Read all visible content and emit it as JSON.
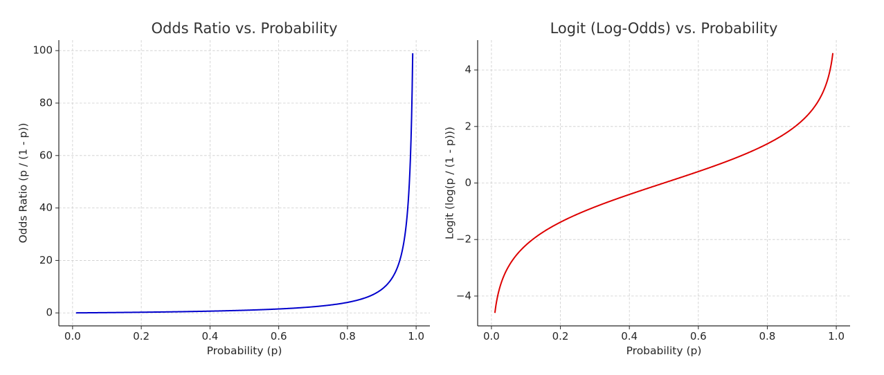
{
  "chart_data": [
    {
      "type": "line",
      "title": "Odds Ratio vs. Probability",
      "xlabel": "Probability (p)",
      "ylabel": "Odds Ratio (p / (1 - p))",
      "xlim": [
        -0.04,
        1.04
      ],
      "ylim": [
        -4.95,
        104
      ],
      "xticks": [
        0.0,
        0.2,
        0.4,
        0.6,
        0.8,
        1.0
      ],
      "xtick_labels": [
        "0.0",
        "0.2",
        "0.4",
        "0.6",
        "0.8",
        "1.0"
      ],
      "yticks": [
        0,
        20,
        40,
        60,
        80,
        100
      ],
      "ytick_labels": [
        "0",
        "20",
        "40",
        "60",
        "80",
        "100"
      ],
      "grid": true,
      "series": [
        {
          "function": "odds",
          "color": "#0000cc",
          "x": [
            0.01,
            0.05,
            0.1,
            0.15,
            0.2,
            0.25,
            0.3,
            0.35,
            0.4,
            0.45,
            0.5,
            0.55,
            0.6,
            0.65,
            0.7,
            0.75,
            0.8,
            0.82,
            0.84,
            0.86,
            0.88,
            0.9,
            0.91,
            0.92,
            0.93,
            0.94,
            0.95,
            0.955,
            0.96,
            0.965,
            0.97,
            0.975,
            0.98,
            0.983,
            0.986,
            0.988,
            0.99
          ],
          "y": [
            0.0101,
            0.0526,
            0.1111,
            0.1765,
            0.25,
            0.3333,
            0.4286,
            0.5385,
            0.6667,
            0.8182,
            1.0,
            1.2222,
            1.5,
            1.8571,
            2.3333,
            3.0,
            4.0,
            4.5556,
            5.25,
            6.1429,
            7.3333,
            9.0,
            10.1111,
            11.5,
            13.2857,
            15.6667,
            19.0,
            21.2222,
            24.0,
            27.5714,
            32.3333,
            39.0,
            49.0,
            57.8235,
            70.4286,
            82.3333,
            99.0
          ]
        }
      ]
    },
    {
      "type": "line",
      "title": "Logit (Log-Odds) vs. Probability",
      "xlabel": "Probability (p)",
      "ylabel": "Logit (log(p / (1 - p)))",
      "xlim": [
        -0.04,
        1.04
      ],
      "ylim": [
        -5.055,
        5.055
      ],
      "xticks": [
        0.0,
        0.2,
        0.4,
        0.6,
        0.8,
        1.0
      ],
      "xtick_labels": [
        "0.0",
        "0.2",
        "0.4",
        "0.6",
        "0.8",
        "1.0"
      ],
      "yticks": [
        -4,
        -2,
        0,
        2,
        4
      ],
      "ytick_labels": [
        "−4",
        "−2",
        "0",
        "2",
        "4"
      ],
      "grid": true,
      "series": [
        {
          "function": "logit",
          "color": "#dd0000",
          "x": [
            0.01,
            0.015,
            0.02,
            0.03,
            0.04,
            0.05,
            0.07,
            0.1,
            0.15,
            0.2,
            0.25,
            0.3,
            0.35,
            0.4,
            0.45,
            0.5,
            0.55,
            0.6,
            0.65,
            0.7,
            0.75,
            0.8,
            0.85,
            0.9,
            0.93,
            0.95,
            0.96,
            0.97,
            0.98,
            0.985,
            0.99
          ],
          "y": [
            -4.5951,
            -4.1846,
            -3.8918,
            -3.4761,
            -3.1781,
            -2.9444,
            -2.5867,
            -2.1972,
            -1.7346,
            -1.3863,
            -1.0986,
            -0.8473,
            -0.619,
            -0.4055,
            -0.2007,
            0.0,
            0.2007,
            0.4055,
            0.619,
            0.8473,
            1.0986,
            1.3863,
            1.7346,
            2.1972,
            2.5867,
            2.9444,
            3.1781,
            3.4761,
            3.8918,
            4.1846,
            4.5951
          ]
        }
      ]
    }
  ]
}
